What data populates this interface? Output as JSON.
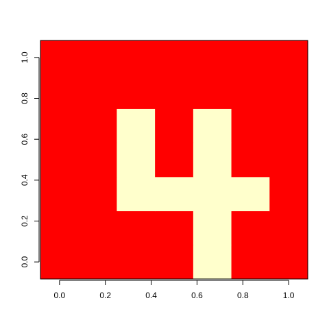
{
  "chart_data": {
    "type": "heatmap",
    "title": "",
    "xlabel": "",
    "ylabel": "",
    "xlim": [
      -0.0833,
      1.0833
    ],
    "ylim": [
      -0.0833,
      1.0833
    ],
    "x_ticks": [
      "0.0",
      "0.2",
      "0.4",
      "0.6",
      "0.8",
      "1.0"
    ],
    "y_ticks": [
      "0.0",
      "0.2",
      "0.4",
      "0.6",
      "0.8",
      "1.0"
    ],
    "x_tick_values": [
      0,
      0.2,
      0.4,
      0.6,
      0.8,
      1.0
    ],
    "y_tick_values": [
      0,
      0.2,
      0.4,
      0.6,
      0.8,
      1.0
    ],
    "x_centers": [
      0,
      0.1667,
      0.3333,
      0.5,
      0.6667,
      0.8333,
      1.0
    ],
    "y_centers": [
      0,
      0.1667,
      0.3333,
      0.5,
      0.6667,
      0.8333,
      1.0
    ],
    "colors": {
      "0": "#ff0000",
      "1": "#ffffcc"
    },
    "grid": false,
    "matrix_rows_bottom_to_top": [
      [
        0,
        0,
        0,
        0,
        1,
        0,
        0
      ],
      [
        0,
        0,
        0,
        0,
        1,
        0,
        0
      ],
      [
        0,
        0,
        1,
        1,
        1,
        1,
        0
      ],
      [
        0,
        0,
        1,
        0,
        1,
        0,
        0
      ],
      [
        0,
        0,
        1,
        0,
        1,
        0,
        0
      ],
      [
        0,
        0,
        0,
        0,
        0,
        0,
        0
      ],
      [
        0,
        0,
        0,
        0,
        0,
        0,
        0
      ]
    ]
  }
}
